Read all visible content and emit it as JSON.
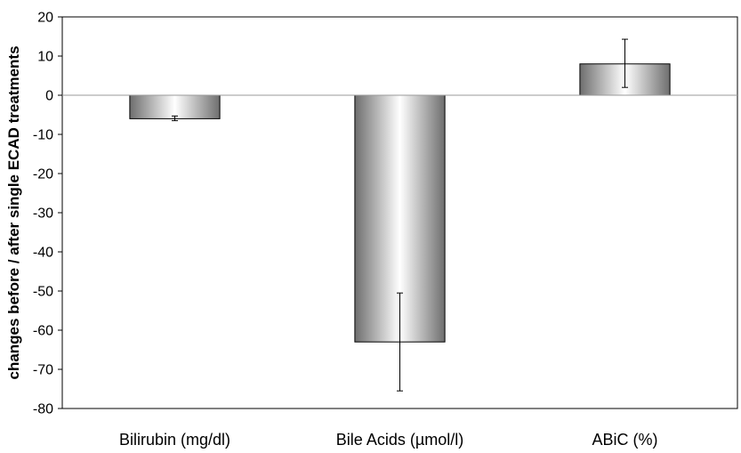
{
  "chart_data": {
    "type": "bar",
    "title": "",
    "xlabel": "",
    "ylabel": "changes before / after single ECAD treatments",
    "categories": [
      "Bilirubin (mg/dl)",
      "Bile Acids (µmol/l)",
      "ABiC (%)"
    ],
    "values": [
      -6,
      -63,
      8
    ],
    "error_low": [
      -6.5,
      -75.5,
      2
    ],
    "error_high": [
      -5.3,
      -50.5,
      14.3
    ],
    "ylim": [
      -80,
      20
    ],
    "yticks": [
      20,
      10,
      0,
      -10,
      -20,
      -30,
      -40,
      -50,
      -60,
      -70,
      -80
    ],
    "grid": false,
    "legend": "none",
    "colors": {
      "bar_dark": "#6e6e6e",
      "bar_light": "#ffffff",
      "bar_edge": "#000000",
      "zero_line": "#9a9a9a",
      "axis": "#000000"
    }
  }
}
